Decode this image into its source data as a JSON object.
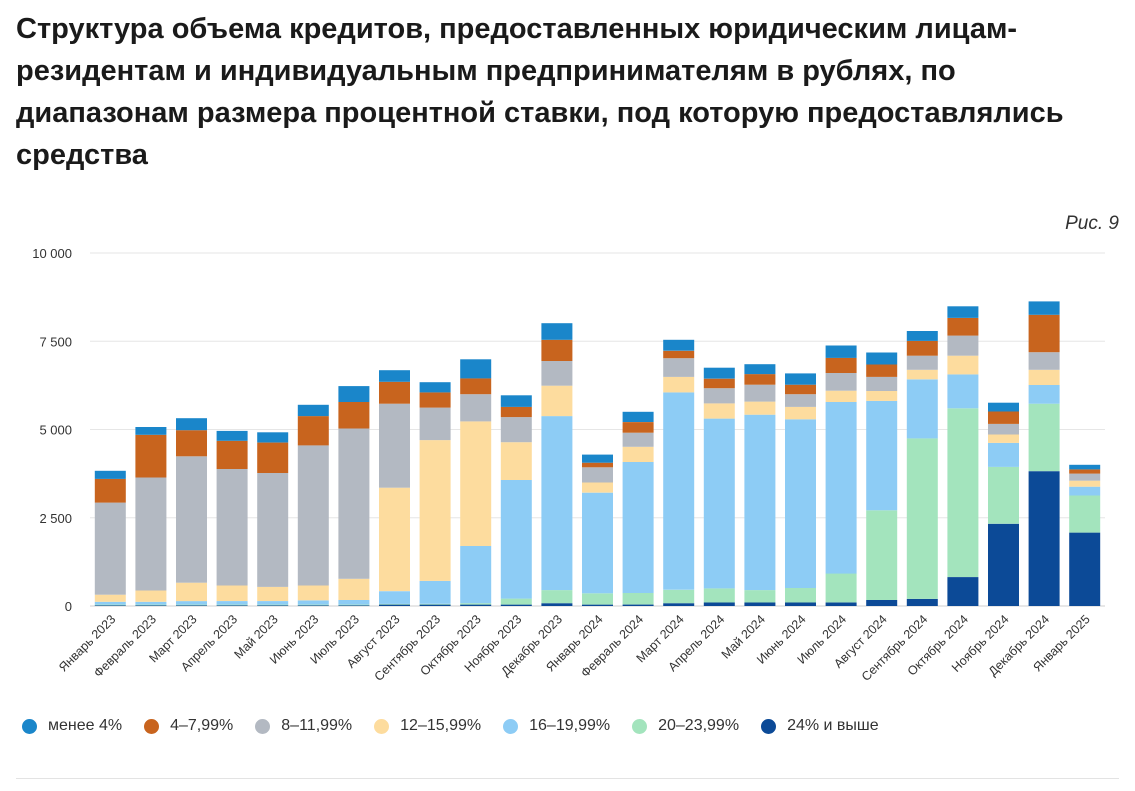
{
  "title": "Структура объема кредитов, предоставленных юридическим лицам-резидентам и индивидуальным предпринимателям в рублях, по диапазонам размера процентной ставки, под которую предоставлялись средства",
  "figure_label": "Рис. 9",
  "chart_data": {
    "type": "bar",
    "stacked": true,
    "title": "Структура объема кредитов, предоставленных юридическим лицам-резидентам и индивидуальным предпринимателям в рублях, по диапазонам размера процентной ставки, под которую предоставлялись средства",
    "xlabel": "",
    "ylabel": "",
    "ylim": [
      0,
      10000
    ],
    "yticks": [
      0,
      2500,
      5000,
      7500,
      10000
    ],
    "ytick_labels": [
      "0",
      "2 500",
      "5 000",
      "7 500",
      "10 000"
    ],
    "grid": true,
    "legend_position": "bottom",
    "categories": [
      "Январь 2023",
      "Февраль 2023",
      "Март 2023",
      "Апрель 2023",
      "Май 2023",
      "Июнь 2023",
      "Июль 2023",
      "Август 2023",
      "Сентябрь 2023",
      "Октябрь 2023",
      "Ноябрь 2023",
      "Декабрь 2023",
      "Январь 2024",
      "Февраль 2024",
      "Март 2024",
      "Апрель 2024",
      "Май 2024",
      "Июнь 2024",
      "Июль 2024",
      "Август 2024",
      "Сентябрь 2024",
      "Октябрь 2024",
      "Ноябрь 2024",
      "Декабрь 2024",
      "Январь 2025"
    ],
    "series": [
      {
        "name": "24% и выше",
        "color": "#0c4a97",
        "values": [
          20,
          20,
          20,
          20,
          20,
          20,
          20,
          40,
          40,
          40,
          40,
          80,
          40,
          40,
          80,
          100,
          100,
          100,
          100,
          170,
          200,
          820,
          2330,
          3820,
          2080
        ]
      },
      {
        "name": "20–23,99%",
        "color": "#a3e4bd",
        "values": [
          20,
          20,
          20,
          20,
          20,
          20,
          20,
          20,
          20,
          40,
          170,
          370,
          320,
          330,
          380,
          400,
          350,
          410,
          820,
          2540,
          4550,
          4780,
          1610,
          1910,
          1050
        ]
      },
      {
        "name": "16–19,99%",
        "color": "#8dccf5",
        "values": [
          80,
          80,
          100,
          100,
          100,
          120,
          130,
          360,
          650,
          1620,
          3360,
          4930,
          2850,
          3710,
          5590,
          4810,
          4970,
          4780,
          4860,
          3100,
          1670,
          960,
          680,
          530,
          250
        ]
      },
      {
        "name": "12–15,99%",
        "color": "#fddc9e",
        "values": [
          200,
          320,
          520,
          440,
          400,
          420,
          600,
          2930,
          3990,
          3530,
          1070,
          860,
          290,
          430,
          440,
          430,
          370,
          350,
          320,
          280,
          270,
          530,
          240,
          430,
          170
        ]
      },
      {
        "name": "8–11,99%",
        "color": "#b3b9c2",
        "values": [
          2610,
          3200,
          3580,
          3300,
          3230,
          3970,
          4260,
          2380,
          920,
          770,
          710,
          700,
          430,
          400,
          530,
          430,
          480,
          360,
          500,
          400,
          400,
          570,
          300,
          500,
          200
        ]
      },
      {
        "name": "4–7,99%",
        "color": "#c8641e",
        "values": [
          670,
          1210,
          740,
          800,
          860,
          830,
          750,
          620,
          430,
          450,
          290,
          600,
          130,
          300,
          210,
          270,
          300,
          270,
          430,
          350,
          420,
          500,
          350,
          1060,
          120
        ]
      },
      {
        "name": "менее 4%",
        "color": "#1a86ca",
        "values": [
          230,
          220,
          340,
          280,
          290,
          320,
          450,
          330,
          290,
          540,
          330,
          470,
          230,
          290,
          310,
          310,
          280,
          320,
          350,
          340,
          280,
          330,
          250,
          380,
          130
        ]
      }
    ]
  },
  "legend": [
    {
      "label": "менее 4%",
      "color": "#1a86ca"
    },
    {
      "label": "4–7,99%",
      "color": "#c8641e"
    },
    {
      "label": "8–11,99%",
      "color": "#b3b9c2"
    },
    {
      "label": "12–15,99%",
      "color": "#fddc9e"
    },
    {
      "label": "16–19,99%",
      "color": "#8dccf5"
    },
    {
      "label": "20–23,99%",
      "color": "#a3e4bd"
    },
    {
      "label": "24% и выше",
      "color": "#0c4a97"
    }
  ]
}
